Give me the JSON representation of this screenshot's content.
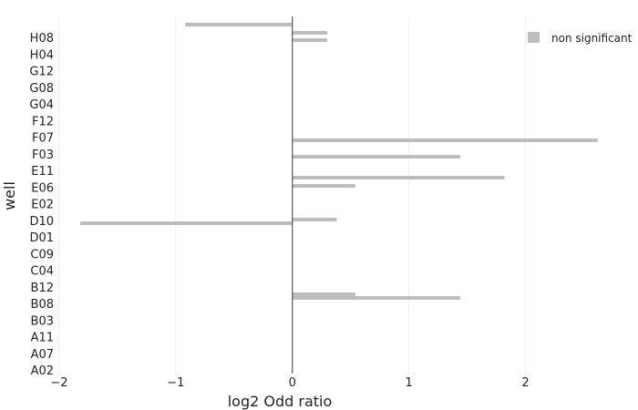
{
  "chart_data": {
    "type": "bar",
    "orientation": "horizontal",
    "xlabel": "log2 Odd ratio",
    "ylabel": "well",
    "xlim": [
      -2,
      2.95
    ],
    "x_ticks": [
      -2,
      -1,
      0,
      1,
      2
    ],
    "x_tick_labels": [
      "−2",
      "−1",
      "0",
      "1",
      "2"
    ],
    "y_tick_labels": [
      "H08",
      "H04",
      "G12",
      "G08",
      "G04",
      "F12",
      "F07",
      "F03",
      "E11",
      "E06",
      "E02",
      "D10",
      "D01",
      "C09",
      "C04",
      "B12",
      "B08",
      "B03",
      "A11",
      "A07",
      "A02"
    ],
    "series": [
      {
        "name": "non significant",
        "color": "#bdbdbd",
        "values": [
          -0.92,
          0.3,
          0.3,
          2.62,
          1.44,
          1.82,
          0.54,
          0.38,
          -1.82,
          0.54,
          1.44
        ]
      }
    ],
    "grid": "vertical",
    "legend": "top-right",
    "zero_line_color": "#555555",
    "grid_color": "#eeeeee"
  }
}
